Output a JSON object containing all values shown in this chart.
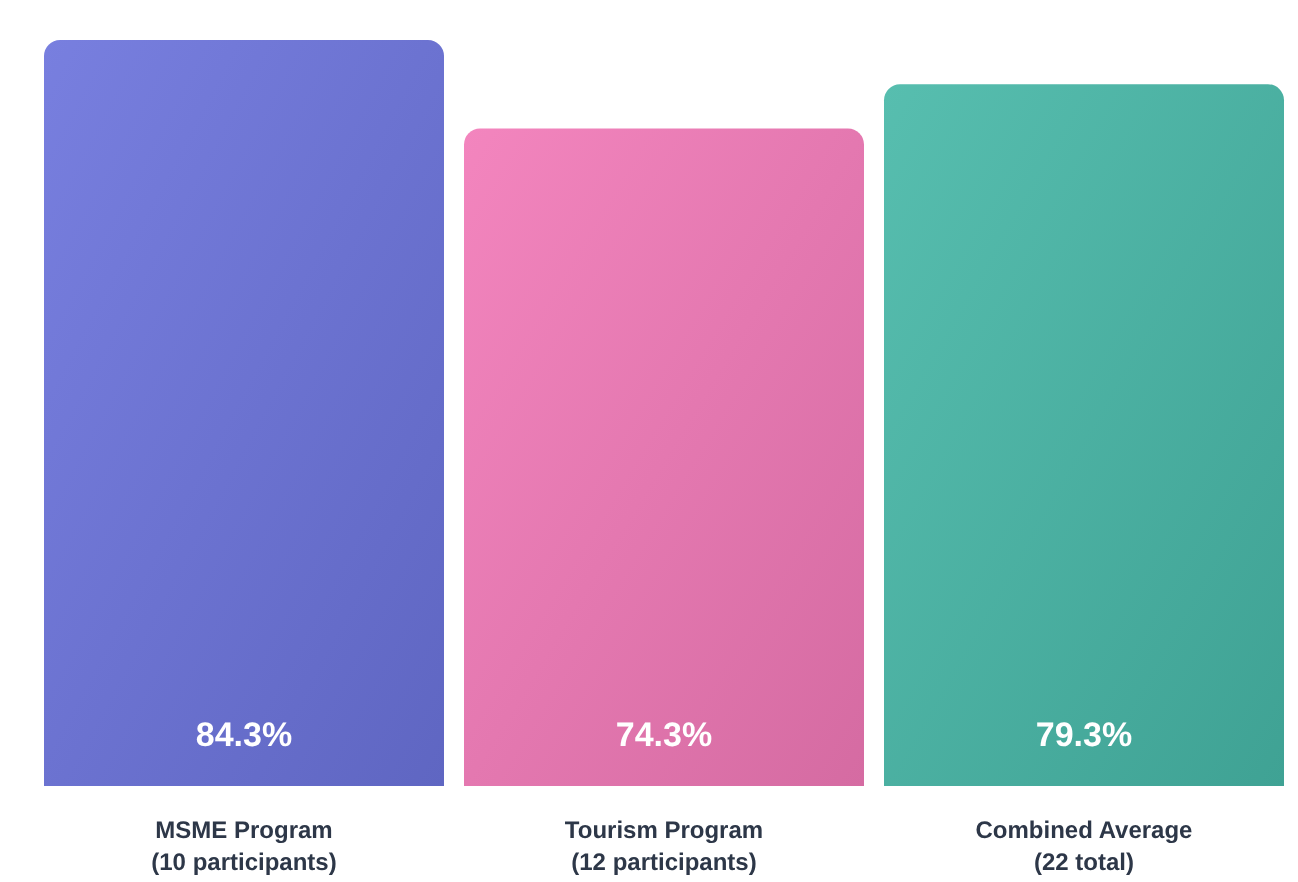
{
  "chart_data": {
    "type": "bar",
    "categories": [
      "MSME Program\n(10 participants)",
      "Tourism Program\n(12 participants)",
      "Combined Average\n(22 total)"
    ],
    "values": [
      84.3,
      74.3,
      79.3
    ],
    "colors": [
      "#6c74dc",
      "#f27ab8",
      "#48b8a8"
    ],
    "value_labels": [
      "84.3%",
      "74.3%",
      "79.3%"
    ],
    "grid": false,
    "legend": false
  }
}
